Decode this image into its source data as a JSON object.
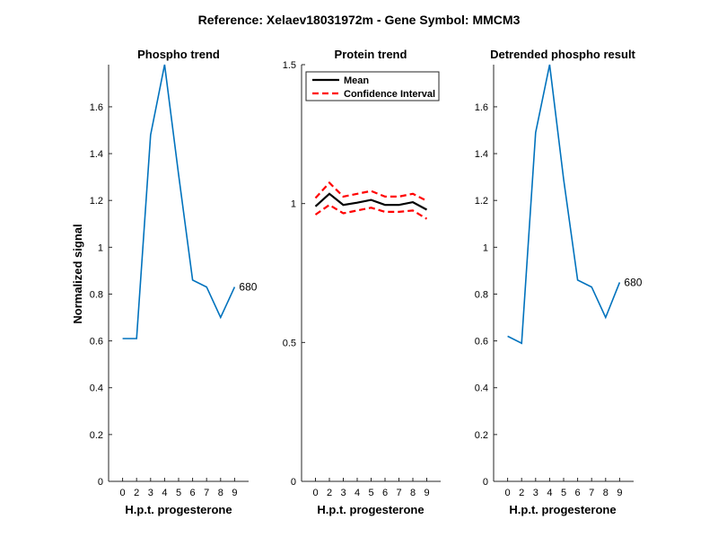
{
  "figure_title": "Reference:  Xelaev18031972m - Gene Symbol:  MMCM3",
  "colors": {
    "series": "#0072BD",
    "mean": "#000000",
    "ci": "#FF0000",
    "axis": "#262626"
  },
  "chart_data": [
    {
      "type": "line",
      "title": "Phospho trend",
      "xlabel": "H.p.t. progesterone",
      "ylabel": "Normalized signal",
      "ylim": [
        0,
        1.78
      ],
      "categories": [
        "0",
        "2",
        "3",
        "4",
        "5",
        "6",
        "7",
        "8",
        "9"
      ],
      "y_ticks": [
        "0",
        "0.2",
        "0.4",
        "0.6",
        "0.8",
        "1",
        "1.2",
        "1.4",
        "1.6"
      ],
      "series": [
        {
          "values": [
            0.61,
            0.61,
            1.48,
            1.78,
            1.31,
            0.86,
            0.83,
            0.7,
            0.83
          ]
        }
      ],
      "annotation": "680"
    },
    {
      "type": "line",
      "title": "Protein trend",
      "xlabel": "H.p.t. progesterone",
      "ylabel": "",
      "ylim": [
        0,
        1.5
      ],
      "categories": [
        "0",
        "2",
        "3",
        "4",
        "5",
        "6",
        "7",
        "8",
        "9"
      ],
      "y_ticks": [
        "0",
        "0.5",
        "1",
        "1.5"
      ],
      "series": [
        {
          "name": "Mean",
          "values": [
            0.99,
            1.035,
            0.995,
            1.003,
            1.013,
            0.995,
            0.995,
            1.005,
            0.978
          ]
        },
        {
          "name": "Confidence Interval",
          "upper": [
            1.02,
            1.075,
            1.025,
            1.035,
            1.045,
            1.025,
            1.025,
            1.035,
            1.01
          ],
          "lower": [
            0.96,
            0.995,
            0.965,
            0.975,
            0.985,
            0.97,
            0.97,
            0.975,
            0.945
          ]
        }
      ],
      "legend": {
        "placement": "top-left",
        "mean_label": "Mean",
        "ci_label": "Confidence Interval"
      }
    },
    {
      "type": "line",
      "title": "Detrended phospho result",
      "xlabel": "H.p.t. progesterone",
      "ylabel": "",
      "ylim": [
        0,
        1.78
      ],
      "categories": [
        "0",
        "2",
        "3",
        "4",
        "5",
        "6",
        "7",
        "8",
        "9"
      ],
      "y_ticks": [
        "0",
        "0.2",
        "0.4",
        "0.6",
        "0.8",
        "1",
        "1.2",
        "1.4",
        "1.6"
      ],
      "series": [
        {
          "values": [
            0.62,
            0.59,
            1.49,
            1.78,
            1.29,
            0.86,
            0.83,
            0.7,
            0.85
          ]
        }
      ],
      "annotation": "680"
    }
  ]
}
